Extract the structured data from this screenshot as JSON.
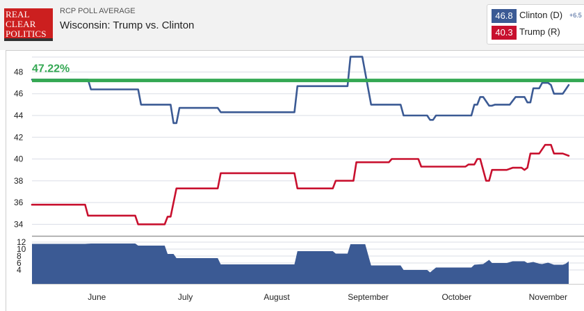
{
  "header": {
    "logo_lines": [
      "REAL",
      "CLEAR",
      "POLITICS"
    ],
    "kicker": "RCP POLL AVERAGE",
    "title": "Wisconsin: Trump vs. Clinton"
  },
  "legend": {
    "clinton": {
      "value": "46.8",
      "name": "Clinton (D)",
      "spread": "+6.5",
      "color": "#3b5a94"
    },
    "trump": {
      "value": "40.3",
      "name": "Trump (R)",
      "color": "#c8102e"
    }
  },
  "chart_data": {
    "type": "line",
    "current_value_label": "47.22%",
    "reference_line": {
      "value": 47.22,
      "color": "#34a853"
    },
    "x_range": [
      "2016-05-10",
      "2016-11-08"
    ],
    "x_tick_labels": [
      {
        "label": "June",
        "date": "2016-06-01"
      },
      {
        "label": "July",
        "date": "2016-07-01"
      },
      {
        "label": "August",
        "date": "2016-08-01"
      },
      {
        "label": "September",
        "date": "2016-09-01"
      },
      {
        "label": "October",
        "date": "2016-10-01"
      },
      {
        "label": "November",
        "date": "2016-11-01"
      }
    ],
    "y_ticks": [
      34,
      36,
      38,
      40,
      42,
      44,
      46,
      48
    ],
    "ylim": [
      33,
      49.5
    ],
    "lower_y_ticks": [
      4,
      6,
      8,
      10,
      12
    ],
    "lower_ylim": [
      0,
      13
    ],
    "grid": true,
    "series": [
      {
        "color": "#3b5a94",
        "points": [
          [
            "2016-05-10",
            47.3
          ],
          [
            "2016-05-29",
            47.3
          ],
          [
            "2016-05-30",
            46.4
          ],
          [
            "2016-06-15",
            46.4
          ],
          [
            "2016-06-16",
            45.0
          ],
          [
            "2016-06-26",
            45.0
          ],
          [
            "2016-06-27",
            43.3
          ],
          [
            "2016-06-28",
            43.3
          ],
          [
            "2016-06-29",
            44.7
          ],
          [
            "2016-07-12",
            44.7
          ],
          [
            "2016-07-13",
            44.3
          ],
          [
            "2016-08-07",
            44.3
          ],
          [
            "2016-08-08",
            46.7
          ],
          [
            "2016-08-25",
            46.7
          ],
          [
            "2016-08-26",
            49.4
          ],
          [
            "2016-08-30",
            49.4
          ],
          [
            "2016-09-02",
            45.0
          ],
          [
            "2016-09-12",
            45.0
          ],
          [
            "2016-09-13",
            44.0
          ],
          [
            "2016-09-21",
            44.0
          ],
          [
            "2016-09-22",
            43.6
          ],
          [
            "2016-09-23",
            43.6
          ],
          [
            "2016-09-24",
            44.0
          ],
          [
            "2016-10-06",
            44.0
          ],
          [
            "2016-10-07",
            45.0
          ],
          [
            "2016-10-08",
            45.0
          ],
          [
            "2016-10-09",
            45.7
          ],
          [
            "2016-10-10",
            45.7
          ],
          [
            "2016-10-12",
            44.9
          ],
          [
            "2016-10-13",
            44.9
          ],
          [
            "2016-10-14",
            45.0
          ],
          [
            "2016-10-19",
            45.0
          ],
          [
            "2016-10-21",
            45.7
          ],
          [
            "2016-10-24",
            45.7
          ],
          [
            "2016-10-25",
            45.2
          ],
          [
            "2016-10-26",
            45.2
          ],
          [
            "2016-10-27",
            46.5
          ],
          [
            "2016-10-29",
            46.5
          ],
          [
            "2016-10-30",
            47.0
          ],
          [
            "2016-11-01",
            47.0
          ],
          [
            "2016-11-02",
            46.8
          ],
          [
            "2016-11-03",
            46.0
          ],
          [
            "2016-11-06",
            46.0
          ],
          [
            "2016-11-08",
            46.8
          ]
        ]
      },
      {
        "color": "#c8102e",
        "points": [
          [
            "2016-05-10",
            35.8
          ],
          [
            "2016-05-28",
            35.8
          ],
          [
            "2016-05-29",
            34.8
          ],
          [
            "2016-06-14",
            34.8
          ],
          [
            "2016-06-15",
            34.0
          ],
          [
            "2016-06-24",
            34.0
          ],
          [
            "2016-06-25",
            34.7
          ],
          [
            "2016-06-26",
            34.7
          ],
          [
            "2016-06-28",
            37.3
          ],
          [
            "2016-07-12",
            37.3
          ],
          [
            "2016-07-13",
            38.7
          ],
          [
            "2016-08-07",
            38.7
          ],
          [
            "2016-08-08",
            37.3
          ],
          [
            "2016-08-20",
            37.3
          ],
          [
            "2016-08-21",
            38.0
          ],
          [
            "2016-08-27",
            38.0
          ],
          [
            "2016-08-28",
            39.7
          ],
          [
            "2016-09-08",
            39.7
          ],
          [
            "2016-09-09",
            40.0
          ],
          [
            "2016-09-18",
            40.0
          ],
          [
            "2016-09-19",
            39.3
          ],
          [
            "2016-10-04",
            39.3
          ],
          [
            "2016-10-05",
            39.5
          ],
          [
            "2016-10-07",
            39.5
          ],
          [
            "2016-10-08",
            40.0
          ],
          [
            "2016-10-09",
            40.0
          ],
          [
            "2016-10-11",
            38.0
          ],
          [
            "2016-10-12",
            38.0
          ],
          [
            "2016-10-13",
            39.0
          ],
          [
            "2016-10-18",
            39.0
          ],
          [
            "2016-10-20",
            39.2
          ],
          [
            "2016-10-23",
            39.2
          ],
          [
            "2016-10-24",
            39.0
          ],
          [
            "2016-10-25",
            39.2
          ],
          [
            "2016-10-26",
            40.5
          ],
          [
            "2016-10-29",
            40.5
          ],
          [
            "2016-10-31",
            41.3
          ],
          [
            "2016-11-02",
            41.3
          ],
          [
            "2016-11-03",
            40.5
          ],
          [
            "2016-11-06",
            40.5
          ],
          [
            "2016-11-08",
            40.3
          ]
        ]
      }
    ],
    "spread_area": {
      "color": "#3b5a94",
      "points": [
        [
          "2016-05-10",
          11.5
        ],
        [
          "2016-05-28",
          11.5
        ],
        [
          "2016-05-30",
          11.6
        ],
        [
          "2016-06-14",
          11.6
        ],
        [
          "2016-06-15",
          11.0
        ],
        [
          "2016-06-24",
          11.0
        ],
        [
          "2016-06-25",
          8.6
        ],
        [
          "2016-06-27",
          8.6
        ],
        [
          "2016-06-28",
          7.4
        ],
        [
          "2016-07-12",
          7.4
        ],
        [
          "2016-07-13",
          5.6
        ],
        [
          "2016-08-07",
          5.6
        ],
        [
          "2016-08-08",
          9.4
        ],
        [
          "2016-08-20",
          9.4
        ],
        [
          "2016-08-21",
          8.7
        ],
        [
          "2016-08-25",
          8.7
        ],
        [
          "2016-08-26",
          11.4
        ],
        [
          "2016-08-31",
          11.4
        ],
        [
          "2016-09-02",
          5.3
        ],
        [
          "2016-09-12",
          5.3
        ],
        [
          "2016-09-13",
          4.0
        ],
        [
          "2016-09-21",
          4.0
        ],
        [
          "2016-09-22",
          3.3
        ],
        [
          "2016-09-24",
          4.7
        ],
        [
          "2016-10-06",
          4.7
        ],
        [
          "2016-10-07",
          5.5
        ],
        [
          "2016-10-10",
          5.7
        ],
        [
          "2016-10-12",
          6.9
        ],
        [
          "2016-10-13",
          6.0
        ],
        [
          "2016-10-18",
          6.0
        ],
        [
          "2016-10-20",
          6.5
        ],
        [
          "2016-10-24",
          6.5
        ],
        [
          "2016-10-25",
          6.0
        ],
        [
          "2016-10-27",
          6.3
        ],
        [
          "2016-10-29",
          5.8
        ],
        [
          "2016-10-30",
          5.7
        ],
        [
          "2016-11-01",
          6.1
        ],
        [
          "2016-11-03",
          5.5
        ],
        [
          "2016-11-06",
          5.5
        ],
        [
          "2016-11-07",
          5.8
        ],
        [
          "2016-11-08",
          6.5
        ]
      ]
    }
  }
}
